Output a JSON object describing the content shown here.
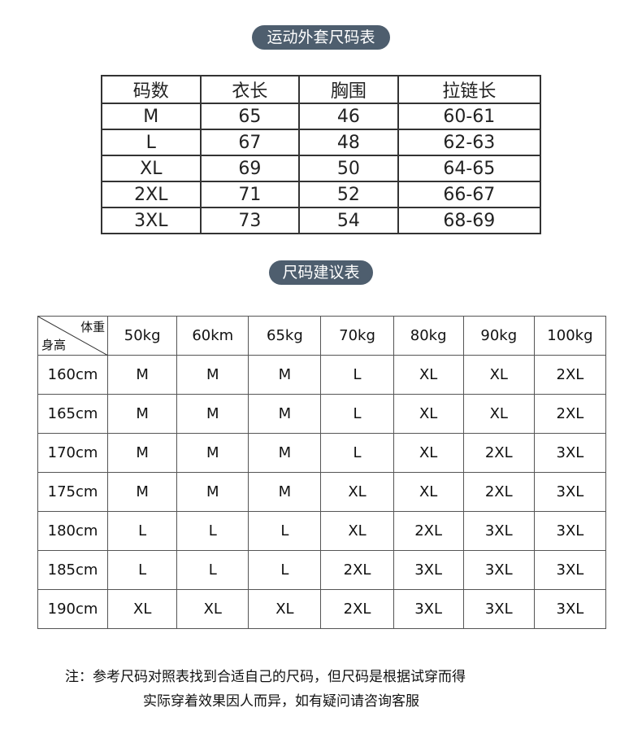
{
  "title1": "运动外套尺码表",
  "table1": {
    "headers": [
      "码数",
      "衣长",
      "胸围",
      "拉链长"
    ],
    "rows": [
      [
        "M",
        "65",
        "46",
        "60-61"
      ],
      [
        "L",
        "67",
        "48",
        "62-63"
      ],
      [
        "XL",
        "69",
        "50",
        "64-65"
      ],
      [
        "2XL",
        "71",
        "52",
        "66-67"
      ],
      [
        "3XL",
        "73",
        "54",
        "68-69"
      ]
    ]
  },
  "title2": "尺码建议表",
  "table2": {
    "corner_top": "体重",
    "corner_bottom": "身高",
    "weights": [
      "50kg",
      "60km",
      "65kg",
      "70kg",
      "80kg",
      "90kg",
      "100kg"
    ],
    "rows": [
      {
        "height": "160cm",
        "sizes": [
          "M",
          "M",
          "M",
          "L",
          "XL",
          "XL",
          "2XL"
        ]
      },
      {
        "height": "165cm",
        "sizes": [
          "M",
          "M",
          "M",
          "L",
          "XL",
          "XL",
          "2XL"
        ]
      },
      {
        "height": "170cm",
        "sizes": [
          "M",
          "M",
          "M",
          "L",
          "XL",
          "2XL",
          "3XL"
        ]
      },
      {
        "height": "175cm",
        "sizes": [
          "M",
          "M",
          "M",
          "XL",
          "XL",
          "2XL",
          "3XL"
        ]
      },
      {
        "height": "180cm",
        "sizes": [
          "L",
          "L",
          "L",
          "XL",
          "2XL",
          "3XL",
          "3XL"
        ]
      },
      {
        "height": "185cm",
        "sizes": [
          "L",
          "L",
          "L",
          "2XL",
          "3XL",
          "3XL",
          "3XL"
        ]
      },
      {
        "height": "190cm",
        "sizes": [
          "XL",
          "XL",
          "XL",
          "2XL",
          "3XL",
          "3XL",
          "3XL"
        ]
      }
    ]
  },
  "note": {
    "line1": "注：参考尺码对照表找到合适自己的尺码，但尺码是根据试穿而得",
    "line2": "实际穿着效果因人而异，如有疑问请咨询客服"
  }
}
